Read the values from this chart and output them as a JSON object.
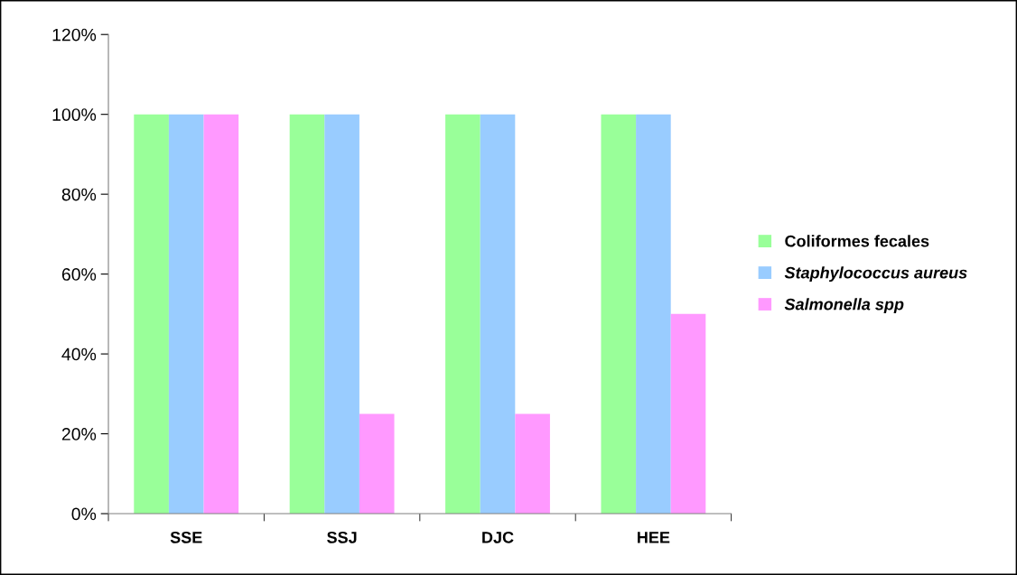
{
  "chart_data": {
    "type": "bar",
    "categories": [
      "SSE",
      "SSJ",
      "DJC",
      "HEE"
    ],
    "series": [
      {
        "name": "Coliformes fecales",
        "color": "#99ff99",
        "values": [
          100,
          100,
          100,
          100
        ]
      },
      {
        "name": "Staphylococcus aureus",
        "color": "#99ccff",
        "values": [
          100,
          100,
          100,
          100
        ]
      },
      {
        "name": "Salmonella spp",
        "color": "#ff99ff",
        "values": [
          100,
          25,
          25,
          50
        ]
      }
    ],
    "ylim": [
      0,
      120
    ],
    "yticks": [
      {
        "value": 0,
        "label": "0%"
      },
      {
        "value": 20,
        "label": "20%"
      },
      {
        "value": 40,
        "label": "40%"
      },
      {
        "value": 60,
        "label": "60%"
      },
      {
        "value": 80,
        "label": "80%"
      },
      {
        "value": 100,
        "label": "100%"
      },
      {
        "value": 120,
        "label": "120%"
      }
    ],
    "grid": false,
    "legend": "right"
  }
}
